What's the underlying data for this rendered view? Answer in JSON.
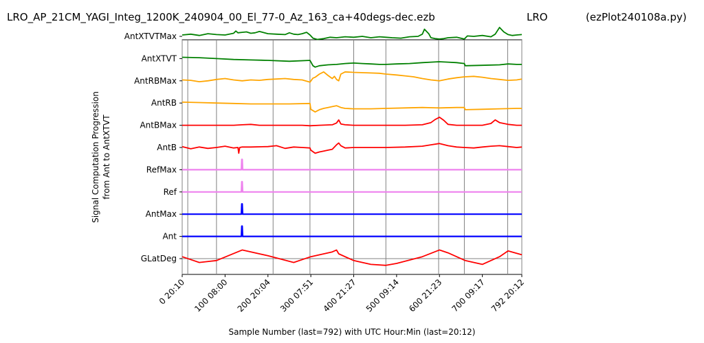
{
  "header": {
    "title_left": "LRO_AP_21CM_YAGI_Integ_1200K_240904_00_El_77-0_Az_163_ca+40degs-dec.ezb",
    "title_mid": "LRO",
    "title_right": "(ezPlot240108a.py)"
  },
  "chart_data": {
    "type": "line",
    "xlabel": "Sample Number (last=792) with UTC Hour:Min (last=20:12)",
    "ylabel_line1": "Signal Computation Progression",
    "ylabel_line2": "from Ant to AntXTVT",
    "xlim": [
      0,
      792
    ],
    "x_ticks": [
      {
        "value": 0,
        "label": "0  20:10"
      },
      {
        "value": 100,
        "label": "100  08:00"
      },
      {
        "value": 200,
        "label": "200  20:04"
      },
      {
        "value": 300,
        "label": "300  07:51"
      },
      {
        "value": 400,
        "label": "400  21:27"
      },
      {
        "value": 500,
        "label": "500  09:14"
      },
      {
        "value": 600,
        "label": "600  21:23"
      },
      {
        "value": 700,
        "label": "700  09:17"
      },
      {
        "value": 792,
        "label": "792  20:12"
      }
    ],
    "vertical_lines_x": [
      0,
      13,
      80,
      212,
      298,
      400,
      475,
      598,
      658,
      759,
      792
    ],
    "series": [
      {
        "name": "AntXTVTMax",
        "color": "#008000",
        "x": [
          0,
          20,
          40,
          60,
          80,
          100,
          110,
          120,
          125,
          130,
          140,
          150,
          160,
          170,
          180,
          200,
          220,
          240,
          250,
          260,
          270,
          280,
          290,
          298,
          305,
          315,
          330,
          345,
          360,
          380,
          400,
          420,
          440,
          460,
          475,
          490,
          510,
          530,
          550,
          560,
          565,
          570,
          575,
          580,
          590,
          600,
          610,
          620,
          640,
          658,
          665,
          680,
          700,
          720,
          730,
          740,
          750,
          760,
          770,
          780,
          792
        ],
        "y": [
          0.3,
          0.5,
          0.2,
          0.6,
          0.4,
          0.3,
          0.5,
          0.7,
          1.2,
          0.8,
          0.9,
          1.0,
          0.7,
          0.8,
          1.1,
          0.6,
          0.5,
          0.4,
          0.8,
          0.5,
          0.4,
          0.6,
          0.9,
          0.3,
          -0.4,
          -0.7,
          -0.5,
          -0.2,
          -0.3,
          -0.1,
          -0.2,
          0.0,
          -0.3,
          -0.1,
          -0.2,
          -0.3,
          -0.4,
          -0.1,
          0.0,
          0.5,
          1.6,
          1.1,
          0.6,
          -0.3,
          -0.5,
          -0.6,
          -0.5,
          -0.3,
          -0.2,
          -0.6,
          0.1,
          0.0,
          0.2,
          -0.1,
          0.5,
          2.0,
          1.0,
          0.4,
          0.2,
          0.3,
          0.4
        ]
      },
      {
        "name": "AntXTVT",
        "color": "#008000",
        "x": [
          0,
          40,
          80,
          120,
          160,
          200,
          250,
          298,
          305,
          310,
          320,
          340,
          360,
          380,
          400,
          420,
          440,
          460,
          475,
          500,
          530,
          560,
          580,
          600,
          620,
          640,
          658,
          660,
          700,
          740,
          760,
          780,
          792
        ],
        "y": [
          0.3,
          0.2,
          0.0,
          -0.2,
          -0.3,
          -0.4,
          -0.6,
          -0.4,
          -1.6,
          -1.9,
          -1.6,
          -1.4,
          -1.3,
          -1.1,
          -1.0,
          -1.1,
          -1.2,
          -1.3,
          -1.3,
          -1.2,
          -1.1,
          -0.9,
          -0.8,
          -0.7,
          -0.8,
          -0.9,
          -1.1,
          -1.6,
          -1.5,
          -1.4,
          -1.2,
          -1.3,
          -1.3
        ]
      },
      {
        "name": "AntRBMax",
        "color": "#ffa500",
        "x": [
          0,
          20,
          40,
          60,
          80,
          100,
          120,
          140,
          160,
          180,
          200,
          220,
          240,
          260,
          280,
          298,
          305,
          310,
          320,
          330,
          340,
          350,
          355,
          360,
          365,
          370,
          380,
          400,
          430,
          460,
          475,
          500,
          520,
          540,
          560,
          580,
          600,
          620,
          640,
          658,
          680,
          700,
          720,
          740,
          760,
          780,
          792
        ],
        "y": [
          0.2,
          0.1,
          -0.2,
          0.0,
          0.3,
          0.5,
          0.2,
          0.0,
          0.2,
          0.1,
          0.3,
          0.4,
          0.5,
          0.3,
          0.2,
          -0.3,
          0.6,
          0.8,
          1.5,
          2.0,
          1.2,
          0.5,
          1.0,
          0.3,
          0.0,
          1.5,
          2.0,
          1.9,
          1.8,
          1.7,
          1.5,
          1.3,
          1.1,
          0.9,
          0.5,
          0.2,
          0.0,
          0.4,
          0.7,
          0.9,
          1.0,
          0.8,
          0.5,
          0.3,
          0.1,
          0.2,
          0.4
        ]
      },
      {
        "name": "AntRB",
        "color": "#ffa500",
        "x": [
          0,
          40,
          80,
          120,
          160,
          200,
          250,
          298,
          300,
          310,
          320,
          330,
          340,
          350,
          360,
          370,
          380,
          400,
          440,
          475,
          520,
          560,
          600,
          640,
          658,
          660,
          700,
          740,
          780,
          792
        ],
        "y": [
          0.2,
          0.1,
          0.0,
          -0.1,
          -0.2,
          -0.2,
          -0.2,
          -0.1,
          -1.4,
          -2.0,
          -1.5,
          -1.2,
          -1.0,
          -0.8,
          -0.6,
          -1.0,
          -1.2,
          -1.3,
          -1.3,
          -1.2,
          -1.1,
          -1.0,
          -1.1,
          -1.0,
          -1.0,
          -1.5,
          -1.4,
          -1.3,
          -1.2,
          -1.2
        ]
      },
      {
        "name": "AntBMax",
        "color": "#ff0000",
        "x": [
          0,
          40,
          80,
          120,
          140,
          160,
          180,
          200,
          240,
          280,
          298,
          320,
          350,
          360,
          365,
          370,
          380,
          400,
          440,
          475,
          520,
          560,
          580,
          590,
          600,
          610,
          620,
          640,
          658,
          680,
          700,
          720,
          730,
          740,
          760,
          780,
          792
        ],
        "y": [
          0.0,
          0.0,
          0.0,
          0.0,
          0.1,
          0.2,
          0.0,
          0.0,
          0.0,
          0.0,
          -0.1,
          0.0,
          0.1,
          0.5,
          1.2,
          0.3,
          0.1,
          0.0,
          0.0,
          0.0,
          0.0,
          0.1,
          0.6,
          1.3,
          1.8,
          1.1,
          0.2,
          0.0,
          0.0,
          0.0,
          0.0,
          0.4,
          1.2,
          0.6,
          0.2,
          0.0,
          0.0
        ]
      },
      {
        "name": "AntB",
        "color": "#ff0000",
        "x": [
          0,
          20,
          40,
          60,
          80,
          100,
          120,
          130,
          132,
          134,
          140,
          160,
          200,
          220,
          240,
          260,
          280,
          298,
          300,
          310,
          320,
          330,
          340,
          350,
          360,
          365,
          370,
          380,
          400,
          440,
          475,
          520,
          560,
          580,
          600,
          620,
          640,
          658,
          680,
          700,
          720,
          740,
          760,
          780,
          792
        ],
        "y": [
          0.2,
          -0.3,
          0.1,
          -0.2,
          0.0,
          0.3,
          -0.1,
          0.0,
          -1.3,
          0.0,
          0.1,
          0.1,
          0.2,
          0.4,
          -0.2,
          0.1,
          0.0,
          -0.1,
          -0.6,
          -1.3,
          -1.0,
          -0.8,
          -0.6,
          -0.4,
          0.6,
          1.0,
          0.4,
          -0.1,
          0.0,
          0.0,
          0.0,
          0.1,
          0.3,
          0.6,
          0.9,
          0.4,
          0.1,
          0.0,
          -0.1,
          0.1,
          0.3,
          0.4,
          0.2,
          0.0,
          0.1
        ]
      },
      {
        "name": "RefMax",
        "color": "#ee82ee",
        "x": [
          0,
          138,
          139,
          140,
          141,
          142,
          792
        ],
        "y": [
          0,
          0,
          1.5,
          1.5,
          0,
          0,
          0
        ]
      },
      {
        "name": "Ref",
        "color": "#ee82ee",
        "x": [
          0,
          138,
          139,
          140,
          141,
          142,
          792
        ],
        "y": [
          0,
          0,
          1.5,
          1.5,
          0,
          0,
          0
        ]
      },
      {
        "name": "AntMax",
        "color": "#0000ff",
        "x": [
          0,
          138,
          139,
          140,
          141,
          142,
          792
        ],
        "y": [
          0,
          0,
          1.5,
          1.5,
          0,
          0,
          0
        ]
      },
      {
        "name": "Ant",
        "color": "#0000ff",
        "x": [
          0,
          138,
          139,
          140,
          141,
          142,
          792
        ],
        "y": [
          0,
          0,
          1.5,
          1.5,
          0,
          0,
          0
        ]
      },
      {
        "name": "GLatDeg",
        "color": "#ff0000",
        "x": [
          0,
          40,
          80,
          140,
          200,
          260,
          300,
          350,
          360,
          365,
          400,
          440,
          475,
          500,
          560,
          600,
          620,
          660,
          700,
          740,
          760,
          792
        ],
        "y": [
          0.2,
          -0.4,
          -0.2,
          0.9,
          0.3,
          -0.4,
          0.2,
          0.7,
          0.9,
          0.5,
          -0.2,
          -0.6,
          -0.7,
          -0.5,
          0.2,
          0.9,
          0.6,
          -0.2,
          -0.6,
          0.2,
          0.8,
          0.4
        ]
      }
    ]
  }
}
